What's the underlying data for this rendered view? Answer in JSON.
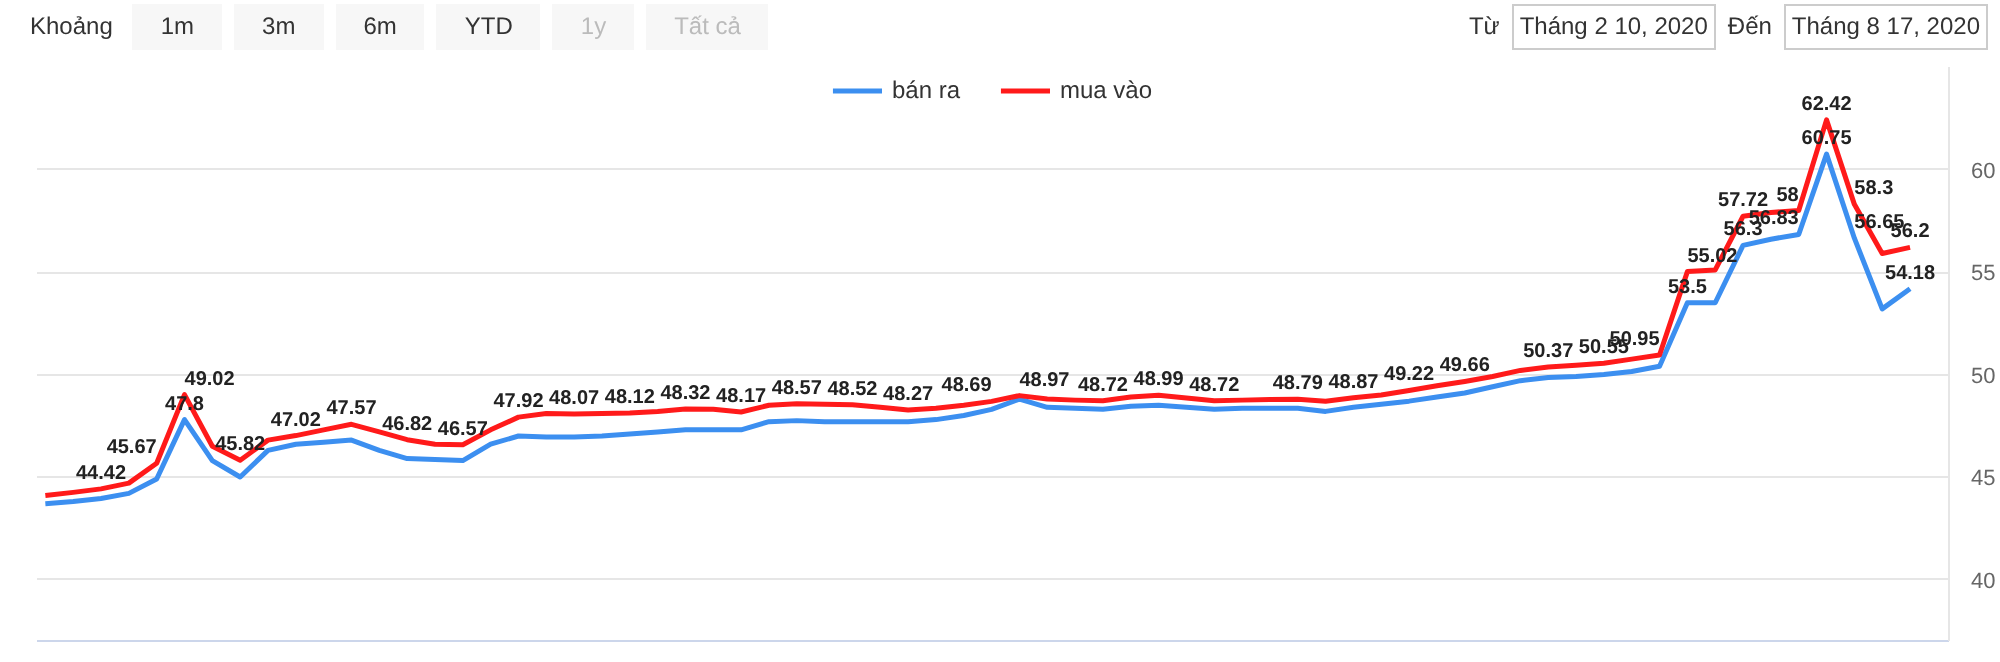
{
  "chart_data": {
    "type": "line",
    "categories": [
      null,
      null,
      null,
      null,
      null,
      null,
      null,
      null,
      null,
      null,
      null,
      null,
      null,
      null,
      null,
      null,
      null,
      null,
      null,
      null,
      null,
      null,
      null,
      null,
      null,
      null,
      null,
      null,
      null,
      null,
      null,
      null,
      null,
      null,
      null,
      null,
      null,
      null,
      null,
      null,
      null,
      null,
      null,
      null,
      null,
      null,
      null,
      null,
      null,
      null,
      null,
      null,
      null,
      null,
      null,
      null,
      null,
      null,
      null,
      null,
      null,
      null,
      null,
      null,
      null,
      null,
      null,
      null
    ],
    "series": [
      {
        "name": "bán ra",
        "color": "#3c8ff0",
        "values": [
          43.7,
          43.8,
          43.95,
          44.2,
          44.9,
          47.8,
          45.8,
          45.0,
          46.3,
          46.6,
          46.7,
          46.8,
          46.3,
          45.9,
          45.85,
          45.8,
          46.6,
          47.0,
          46.95,
          46.95,
          47.0,
          47.1,
          47.2,
          47.3,
          47.3,
          47.3,
          47.7,
          47.75,
          47.7,
          47.7,
          47.7,
          47.7,
          47.8,
          48.0,
          48.3,
          48.8,
          48.4,
          48.35,
          48.3,
          48.45,
          48.5,
          48.4,
          48.3,
          48.35,
          48.35,
          48.35,
          48.2,
          48.4,
          48.55,
          48.7,
          48.9,
          49.1,
          49.4,
          49.7,
          49.85,
          49.9,
          50.0,
          50.15,
          50.4,
          53.5,
          53.5,
          56.3,
          56.6,
          56.83,
          60.75,
          56.65,
          53.2,
          54.18
        ],
        "value_labels": [
          null,
          null,
          null,
          null,
          null,
          "47.8",
          null,
          null,
          null,
          null,
          null,
          null,
          null,
          null,
          null,
          null,
          null,
          null,
          null,
          null,
          null,
          null,
          null,
          null,
          null,
          null,
          null,
          null,
          null,
          null,
          null,
          null,
          null,
          null,
          null,
          null,
          null,
          null,
          null,
          null,
          null,
          null,
          null,
          null,
          null,
          null,
          null,
          null,
          null,
          null,
          null,
          null,
          null,
          null,
          null,
          null,
          null,
          null,
          null,
          "53.5",
          null,
          "56.3",
          null,
          "56.83",
          "60.75",
          "56.65",
          null,
          "54.18"
        ]
      },
      {
        "name": "mua vào",
        "color": "#ff1a1a",
        "values": [
          44.1,
          44.25,
          44.42,
          44.7,
          45.67,
          49.02,
          46.5,
          45.82,
          46.8,
          47.02,
          47.3,
          47.57,
          47.2,
          46.82,
          46.6,
          46.57,
          47.3,
          47.92,
          48.1,
          48.07,
          48.1,
          48.12,
          48.2,
          48.32,
          48.3,
          48.17,
          48.5,
          48.57,
          48.55,
          48.52,
          48.4,
          48.27,
          48.35,
          48.5,
          48.69,
          48.97,
          48.8,
          48.75,
          48.72,
          48.9,
          48.99,
          48.85,
          48.72,
          48.75,
          48.78,
          48.79,
          48.7,
          48.87,
          49.0,
          49.22,
          49.45,
          49.66,
          49.9,
          50.2,
          50.37,
          50.45,
          50.55,
          50.75,
          50.95,
          55.02,
          55.1,
          57.72,
          57.9,
          58,
          62.42,
          58.3,
          55.9,
          56.2
        ],
        "value_labels": [
          null,
          null,
          "44.42",
          null,
          "45.67",
          "49.02",
          null,
          "45.82",
          null,
          "47.02",
          null,
          "47.57",
          null,
          "46.82",
          null,
          "46.57",
          null,
          "47.92",
          null,
          "48.07",
          null,
          "48.12",
          null,
          "48.32",
          null,
          "48.17",
          null,
          "48.57",
          null,
          "48.52",
          null,
          "48.27",
          null,
          null,
          "48.69",
          "48.97",
          null,
          null,
          "48.72",
          null,
          "48.99",
          null,
          "48.72",
          null,
          null,
          "48.79",
          null,
          "48.87",
          null,
          "49.22",
          null,
          "49.66",
          null,
          null,
          "50.37",
          null,
          "50.55",
          null,
          "50.95",
          "55.02",
          null,
          "57.72",
          null,
          "58",
          "62.42",
          "58.3",
          null,
          "56.2"
        ]
      }
    ],
    "ylim": [
      37,
      65
    ],
    "yticks": [
      40,
      45,
      50,
      55,
      60
    ],
    "grid": "y",
    "legend": "top",
    "tick_labels": "y",
    "marker": "none",
    "line_style": "solid",
    "annotations": [
      "Khoảng",
      "1m",
      "3m",
      "6m",
      "YTD",
      "1y",
      "Tất cả",
      "Từ",
      "Tháng 2 10, 2020",
      "Đến",
      "Tháng 8 17, 2020"
    ]
  }
}
